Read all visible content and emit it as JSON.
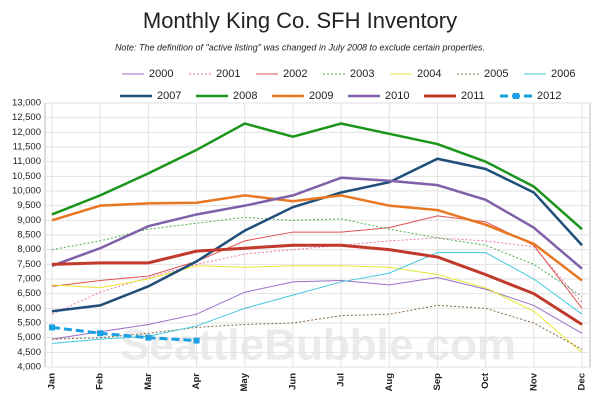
{
  "chart_data": {
    "type": "line",
    "title": "Monthly King Co. SFH Inventory",
    "subtitle": "Note: The definition of \"active listing\" was changed in July 2008 to exclude certain properties.",
    "watermark": "SeattleBubble.com",
    "categories": [
      "Jan",
      "Feb",
      "Mar",
      "Apr",
      "May",
      "Jun",
      "Jul",
      "Aug",
      "Sep",
      "Oct",
      "Nov",
      "Dec"
    ],
    "ylim": [
      4000,
      13000
    ],
    "yticks": [
      {
        "value": 4000,
        "label": "4,000"
      },
      {
        "value": 4500,
        "label": "4,500"
      },
      {
        "value": 5000,
        "label": "5,000"
      },
      {
        "value": 5500,
        "label": "5,500"
      },
      {
        "value": 6000,
        "label": "6,000"
      },
      {
        "value": 6500,
        "label": "6,500"
      },
      {
        "value": 7000,
        "label": "7,000"
      },
      {
        "value": 7500,
        "label": "7,500"
      },
      {
        "value": 8000,
        "label": "8,000"
      },
      {
        "value": 8500,
        "label": "8,500"
      },
      {
        "value": 9000,
        "label": "9,000"
      },
      {
        "value": 9500,
        "label": "9,500"
      },
      {
        "value": 10000,
        "label": "10,000"
      },
      {
        "value": 10500,
        "label": "10,500"
      },
      {
        "value": 11000,
        "label": "11,000"
      },
      {
        "value": 11500,
        "label": "11,500"
      },
      {
        "value": 12000,
        "label": "12,000"
      },
      {
        "value": 12500,
        "label": "12,500"
      },
      {
        "value": 13000,
        "label": "13,000"
      }
    ],
    "grid": true,
    "series": [
      {
        "name": "2000",
        "color": "#9b6fc6",
        "width": 1,
        "values": [
          4950,
          5200,
          5450,
          5800,
          6550,
          6900,
          6950,
          6800,
          7050,
          6650,
          6100,
          5150
        ]
      },
      {
        "name": "2001",
        "color": "#ee77aa",
        "width": 1,
        "dash": true,
        "values": [
          5800,
          6550,
          7050,
          7500,
          7850,
          8000,
          8150,
          8300,
          8400,
          8300,
          8100,
          6200
        ]
      },
      {
        "name": "2002",
        "color": "#e05050",
        "width": 1,
        "values": [
          6750,
          6950,
          7100,
          7600,
          8300,
          8600,
          8600,
          8750,
          9150,
          8950,
          8150,
          6000
        ]
      },
      {
        "name": "2003",
        "color": "#4caf50",
        "width": 1,
        "dash": true,
        "values": [
          8000,
          8300,
          8700,
          8900,
          9100,
          9000,
          9050,
          8700,
          8400,
          8150,
          7500,
          6400
        ]
      },
      {
        "name": "2004",
        "color": "#e8e830",
        "width": 1,
        "values": [
          6800,
          6700,
          7000,
          7450,
          7400,
          7450,
          7450,
          7400,
          7150,
          6700,
          5900,
          4500
        ]
      },
      {
        "name": "2005",
        "color": "#8a6a4a",
        "width": 1,
        "dash": true,
        "values": [
          4950,
          5000,
          5150,
          5350,
          5450,
          5500,
          5750,
          5800,
          6100,
          6000,
          5500,
          4600
        ]
      },
      {
        "name": "2006",
        "color": "#40c8dc",
        "width": 1,
        "values": [
          4800,
          4950,
          5050,
          5400,
          6000,
          6450,
          6900,
          7200,
          7900,
          7900,
          7000,
          5800
        ]
      },
      {
        "name": "2007",
        "color": "#1f4e79",
        "width": 2.5,
        "values": [
          5900,
          6100,
          6750,
          7600,
          8650,
          9450,
          9950,
          10300,
          11100,
          10750,
          9950,
          8150
        ]
      },
      {
        "name": "2008",
        "color": "#1a951a",
        "width": 2.5,
        "values": [
          9200,
          9850,
          10600,
          11400,
          12300,
          11850,
          12300,
          11950,
          11600,
          11000,
          10150,
          8700
        ]
      },
      {
        "name": "2009",
        "color": "#e87722",
        "width": 2.5,
        "values": [
          9000,
          9500,
          9580,
          9600,
          9850,
          9650,
          9850,
          9500,
          9350,
          8850,
          8200,
          6950
        ]
      },
      {
        "name": "2010",
        "color": "#8060a8",
        "width": 2.5,
        "values": [
          7450,
          8050,
          8800,
          9200,
          9500,
          9850,
          10450,
          10350,
          10200,
          9700,
          8750,
          7350
        ]
      },
      {
        "name": "2011",
        "color": "#c0392b",
        "width": 3,
        "values": [
          7500,
          7550,
          7550,
          7950,
          8050,
          8150,
          8150,
          8000,
          7750,
          7150,
          6500,
          5450
        ]
      },
      {
        "name": "2012",
        "color": "#1aa0e0",
        "width": 3,
        "dash": true,
        "marker": "square",
        "values": [
          5350,
          5150,
          5000,
          4900,
          null,
          null,
          null,
          null,
          null,
          null,
          null,
          null
        ]
      }
    ]
  }
}
